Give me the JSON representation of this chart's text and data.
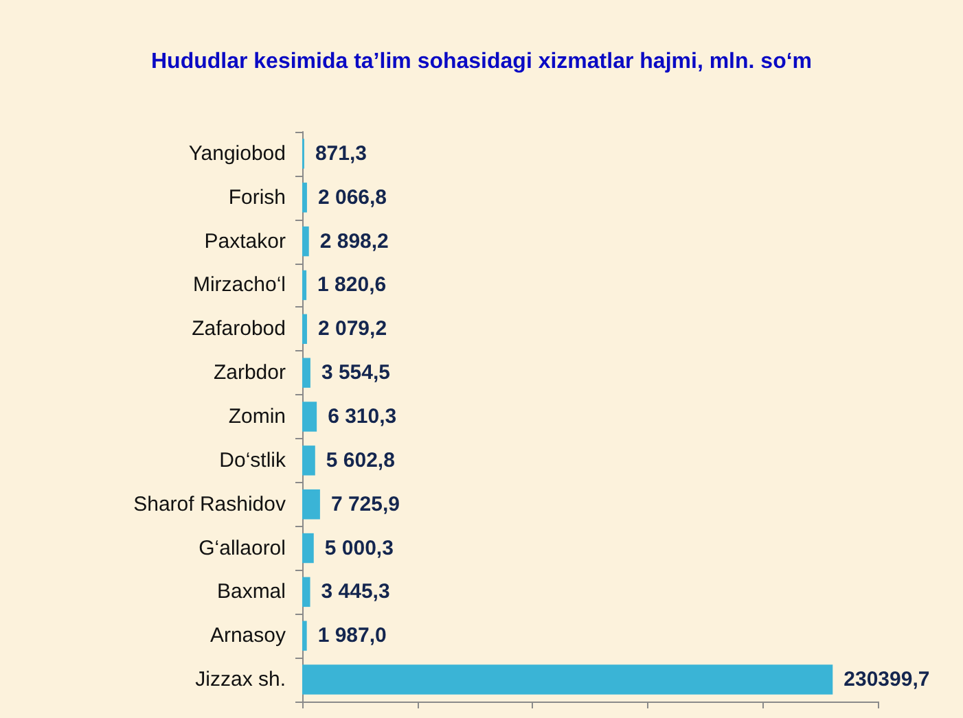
{
  "chart_data": {
    "type": "bar",
    "orientation": "horizontal",
    "title": "Hududlar kesimida ta’lim sohasidagi xizmatlar hajmi, mln. so‘m",
    "categories": [
      "Yangiobod",
      "Forish",
      "Paxtakor",
      "Mirzacho‘l",
      "Zafarobod",
      "Zarbdor",
      "Zomin",
      "Do‘stlik",
      "Sharof Rashidov",
      "G‘allaorol",
      "Baxmal",
      "Arnasoy",
      "Jizzax sh."
    ],
    "values": [
      871.3,
      2066.8,
      2898.2,
      1820.6,
      2079.2,
      3554.5,
      6310.3,
      5602.8,
      7725.9,
      5000.3,
      3445.3,
      1987.0,
      230399.7
    ],
    "value_labels": [
      "871,3",
      "2 066,8",
      "2 898,2",
      "1 820,6",
      "2 079,2",
      "3 554,5",
      "6 310,3",
      "5 602,8",
      "7 725,9",
      "5 000,3",
      "3 445,3",
      "1 987,0",
      "230399,7"
    ],
    "color": "#3ab4d6",
    "tick_labels": "y"
  }
}
